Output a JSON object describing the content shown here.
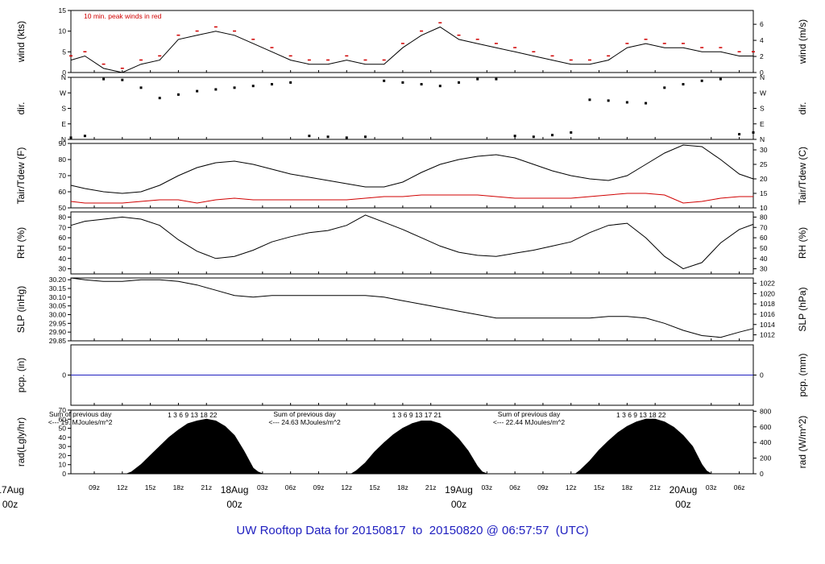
{
  "title": "UW Rooftop Data for 20150817  to  20150820 @ 06:57:57  (UTC)",
  "colors": {
    "frame": "#000000",
    "peak_wind": "#d00000",
    "dewpoint": "#d00000",
    "precip_line": "#2020c0",
    "footer": "#2020c0",
    "rad_note": "#8a00b0",
    "date_label": "#d00000"
  },
  "time_axis": {
    "hour_ticks": [
      "09z",
      "12z",
      "15z",
      "18z",
      "21z",
      "03z",
      "06z",
      "09z",
      "12z",
      "15z",
      "18z",
      "21z",
      "03z",
      "06z",
      "09z",
      "12z",
      "15z",
      "18z",
      "21z",
      "03z",
      "06z"
    ],
    "hour_values": [
      9,
      12,
      15,
      18,
      21,
      27,
      30,
      33,
      36,
      39,
      42,
      45,
      51,
      54,
      57,
      60,
      63,
      66,
      69,
      75,
      78
    ],
    "date_labels": [
      {
        "date": "17Aug",
        "time": "00z",
        "hour": 0
      },
      {
        "date": "18Aug",
        "time": "00z",
        "hour": 24
      },
      {
        "date": "19Aug",
        "time": "00z",
        "hour": 48
      },
      {
        "date": "20Aug",
        "time": "00z",
        "hour": 72
      }
    ],
    "range_hours": [
      6.5,
      79.5
    ]
  },
  "chart_data": [
    {
      "panel": "wind",
      "type": "line",
      "ylabel": "wind (kts)",
      "ylabel_right": "wind (m/s)",
      "ylim": [
        0,
        15
      ],
      "yticks": [
        0,
        5,
        10,
        15
      ],
      "yticks_right": [
        0,
        2,
        4,
        6
      ],
      "right_scale": 1.9438,
      "annotation": "10 min. peak winds in red",
      "series": [
        {
          "name": "",
          "x": [
            6.5,
            8,
            10,
            12,
            14,
            16,
            18,
            20,
            22,
            24,
            26,
            28,
            30,
            32,
            34,
            36,
            38,
            40,
            42,
            44,
            46,
            48,
            50,
            52,
            54,
            56,
            58,
            60,
            62,
            64,
            66,
            68,
            70,
            72,
            74,
            76,
            78,
            79.5
          ],
          "y": [
            3,
            4,
            1,
            0,
            2,
            3,
            8,
            9,
            10,
            9,
            7,
            5,
            3,
            2,
            2,
            3,
            2,
            2,
            6,
            9,
            11,
            8,
            7,
            6,
            5,
            4,
            3,
            2,
            2,
            3,
            6,
            7,
            6,
            6,
            5,
            5,
            4,
            4
          ]
        }
      ]
    },
    {
      "panel": "dir",
      "type": "scatter",
      "ylabel": "dir.",
      "ylabel_right": "dir.",
      "ylim": [
        0,
        360
      ],
      "yticks": [
        "N",
        "E",
        "S",
        "W",
        "N"
      ],
      "series": [
        {
          "name": "",
          "x": [
            6.5,
            8,
            10,
            12,
            14,
            16,
            18,
            20,
            22,
            24,
            26,
            28,
            30,
            32,
            34,
            36,
            38,
            40,
            42,
            44,
            46,
            48,
            50,
            52,
            54,
            56,
            58,
            60,
            62,
            64,
            66,
            68,
            70,
            72,
            74,
            76,
            78,
            79.5
          ],
          "y": [
            10,
            20,
            350,
            345,
            300,
            240,
            260,
            280,
            290,
            300,
            310,
            320,
            330,
            20,
            15,
            10,
            15,
            340,
            330,
            320,
            310,
            330,
            350,
            350,
            20,
            15,
            25,
            40,
            230,
            225,
            215,
            210,
            300,
            320,
            340,
            350,
            30,
            40
          ]
        }
      ]
    },
    {
      "panel": "temp",
      "type": "line",
      "ylabel": "Tair/Tdew (F)",
      "ylabel_right": "Tair/Tdew (C)",
      "ylim": [
        50,
        90
      ],
      "yticks": [
        50,
        60,
        70,
        80,
        90
      ],
      "yticks_right": [
        10,
        15,
        20,
        25,
        30
      ],
      "series": [
        {
          "name": "",
          "color": "#000000",
          "x": [
            6.5,
            8,
            10,
            12,
            14,
            16,
            18,
            20,
            22,
            24,
            26,
            28,
            30,
            32,
            34,
            36,
            38,
            40,
            42,
            44,
            46,
            48,
            50,
            52,
            54,
            56,
            58,
            60,
            62,
            64,
            66,
            68,
            70,
            72,
            74,
            76,
            78,
            79.5
          ],
          "y": [
            64,
            62,
            60,
            59,
            60,
            64,
            70,
            75,
            78,
            79,
            77,
            74,
            71,
            69,
            67,
            65,
            63,
            63,
            66,
            72,
            77,
            80,
            82,
            83,
            81,
            77,
            73,
            70,
            68,
            67,
            70,
            77,
            84,
            89,
            88,
            80,
            71,
            68
          ]
        },
        {
          "name": "",
          "color": "#d00000",
          "x": [
            6.5,
            8,
            10,
            12,
            14,
            16,
            18,
            20,
            22,
            24,
            26,
            28,
            30,
            32,
            34,
            36,
            38,
            40,
            42,
            44,
            46,
            48,
            50,
            52,
            54,
            56,
            58,
            60,
            62,
            64,
            66,
            68,
            70,
            72,
            74,
            76,
            78,
            79.5
          ],
          "y": [
            54,
            53,
            53,
            53,
            54,
            55,
            55,
            53,
            55,
            56,
            55,
            55,
            55,
            55,
            55,
            55,
            56,
            57,
            57,
            58,
            58,
            58,
            58,
            57,
            56,
            56,
            56,
            56,
            57,
            58,
            59,
            59,
            58,
            53,
            54,
            56,
            57,
            57
          ]
        }
      ]
    },
    {
      "panel": "rh",
      "type": "line",
      "ylabel": "RH (%)",
      "ylabel_right": "RH (%)",
      "ylim": [
        25,
        85
      ],
      "yticks": [
        30,
        40,
        50,
        60,
        70,
        80
      ],
      "yticks_right": [
        30,
        40,
        50,
        60,
        70,
        80
      ],
      "series": [
        {
          "name": "",
          "x": [
            6.5,
            8,
            10,
            12,
            14,
            16,
            18,
            20,
            22,
            24,
            26,
            28,
            30,
            32,
            34,
            36,
            38,
            40,
            42,
            44,
            46,
            48,
            50,
            52,
            54,
            56,
            58,
            60,
            62,
            64,
            66,
            68,
            70,
            72,
            74,
            76,
            78,
            79.5
          ],
          "y": [
            72,
            76,
            78,
            80,
            78,
            72,
            58,
            47,
            40,
            42,
            48,
            56,
            61,
            65,
            67,
            72,
            82,
            75,
            68,
            60,
            52,
            46,
            43,
            42,
            45,
            48,
            52,
            56,
            65,
            72,
            74,
            60,
            42,
            30,
            36,
            55,
            68,
            73
          ]
        }
      ]
    },
    {
      "panel": "slp",
      "type": "line",
      "ylabel": "SLP (inHg)",
      "ylabel_right": "SLP (hPa)",
      "ylim": [
        29.85,
        30.21
      ],
      "yticks": [
        29.85,
        29.9,
        29.95,
        30.0,
        30.05,
        30.1,
        30.15,
        30.2
      ],
      "yticks_right": [
        1012,
        1014,
        1016,
        1018,
        1020,
        1022
      ],
      "series": [
        {
          "name": "",
          "x": [
            6.5,
            8,
            10,
            12,
            14,
            16,
            18,
            20,
            22,
            24,
            26,
            28,
            30,
            32,
            34,
            36,
            38,
            40,
            42,
            44,
            46,
            48,
            50,
            52,
            54,
            56,
            58,
            60,
            62,
            64,
            66,
            68,
            70,
            72,
            74,
            76,
            78,
            79.5
          ],
          "y": [
            30.21,
            30.2,
            30.19,
            30.19,
            30.2,
            30.2,
            30.19,
            30.17,
            30.14,
            30.11,
            30.1,
            30.11,
            30.11,
            30.11,
            30.11,
            30.11,
            30.11,
            30.1,
            30.08,
            30.06,
            30.04,
            30.02,
            30.0,
            29.98,
            29.98,
            29.98,
            29.98,
            29.98,
            29.98,
            29.99,
            29.99,
            29.98,
            29.95,
            29.91,
            29.88,
            29.87,
            29.9,
            29.92
          ]
        }
      ]
    },
    {
      "panel": "pcp",
      "type": "line",
      "ylabel": "pcp. (in)",
      "ylabel_right": "pcp. (mm)",
      "ylim": [
        -1,
        1
      ],
      "yticks": [
        0
      ],
      "yticks_right": [
        0
      ],
      "series": [
        {
          "name": "",
          "x": [
            6.5,
            79.5
          ],
          "y": [
            0,
            0
          ]
        }
      ]
    },
    {
      "panel": "rad",
      "type": "area",
      "ylabel": "rad(Lgly/hr)",
      "ylabel_right": "rad (W/m^2)",
      "ylim": [
        0,
        70
      ],
      "yticks": [
        0,
        10,
        20,
        30,
        40,
        50,
        60,
        70
      ],
      "yticks_right": [
        0,
        200,
        400,
        600,
        800
      ],
      "right_scale": 11.63,
      "series": [
        {
          "name": "",
          "x": [
            6.5,
            12.5,
            13,
            14,
            15,
            16,
            17,
            18,
            19,
            20,
            21,
            22,
            23,
            24,
            25,
            26,
            26.5,
            27,
            36.5,
            37,
            38,
            39,
            40,
            41,
            42,
            43,
            44,
            45,
            46,
            47,
            48,
            49,
            50,
            50.5,
            51,
            60.5,
            61,
            62,
            63,
            64,
            65,
            66,
            67,
            68,
            69,
            70,
            71,
            72,
            73,
            74,
            74.5,
            75,
            79.5
          ],
          "y": [
            0,
            0,
            2,
            10,
            20,
            30,
            40,
            48,
            55,
            58,
            60,
            58,
            52,
            42,
            25,
            6,
            2,
            0,
            0,
            3,
            12,
            24,
            34,
            43,
            50,
            55,
            58,
            58,
            55,
            48,
            38,
            25,
            8,
            2,
            0,
            0,
            4,
            14,
            26,
            36,
            45,
            52,
            57,
            60,
            60,
            57,
            51,
            42,
            30,
            10,
            3,
            0,
            0
          ]
        }
      ],
      "daily_notes": [
        {
          "line1": "Sum of previous day",
          "line2": "<--- 19.  MJoules/m^2",
          "hours": "1   3   6   9  13  18   22"
        },
        {
          "line1": "Sum of previous day",
          "line2": "<--- 24.63 MJoules/m^2",
          "hours": "1   3   6   9  13  17   21"
        },
        {
          "line1": "Sum of previous day",
          "line2": "<--- 22.44 MJoules/m^2",
          "hours": "1   3   6   9  13  18   22"
        }
      ]
    }
  ]
}
